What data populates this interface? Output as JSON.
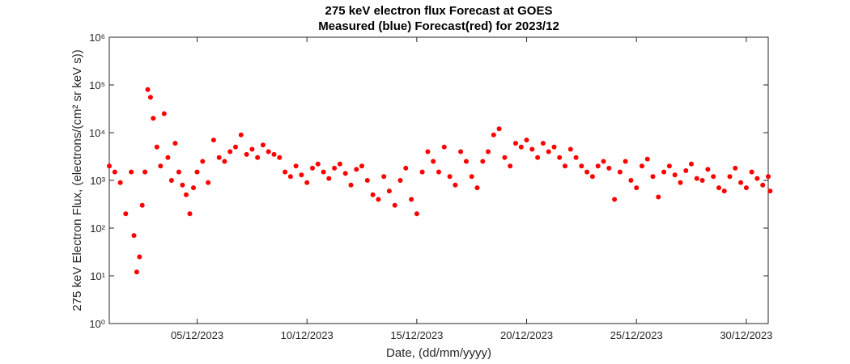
{
  "chart_data": {
    "type": "scatter",
    "title": "275 keV electron flux Forecast at GOES",
    "subtitle": "Measured (blue) Forecast(red) for 2023/12",
    "xlabel": "Date, (dd/mm/yyyy)",
    "ylabel": "275 keV Electron Flux, (electrons/(cm² sr keV s))",
    "y_scale": "log",
    "ylim": [
      1,
      1000000
    ],
    "xlim": [
      "2023-12-01",
      "2023-12-30T24:00"
    ],
    "y_tick_labels": [
      "10⁰",
      "10¹",
      "10²",
      "10³",
      "10⁴",
      "10⁵",
      "10⁶"
    ],
    "x_ticks": [
      {
        "date": "2023-12-05",
        "label": "05/12/2023"
      },
      {
        "date": "2023-12-10",
        "label": "10/12/2023"
      },
      {
        "date": "2023-12-15",
        "label": "15/12/2023"
      },
      {
        "date": "2023-12-20",
        "label": "20/12/2023"
      },
      {
        "date": "2023-12-25",
        "label": "25/12/2023"
      },
      {
        "date": "2023-12-30",
        "label": "30/12/2023"
      }
    ],
    "grid": false,
    "legend": "none",
    "series": [
      {
        "color": "#ff0000",
        "points": [
          [
            "2023-12-01T00:00",
            2000
          ],
          [
            "2023-12-01T06:00",
            1500
          ],
          [
            "2023-12-01T12:00",
            900
          ],
          [
            "2023-12-01T18:00",
            200
          ],
          [
            "2023-12-02T00:00",
            1500
          ],
          [
            "2023-12-02T03:00",
            70
          ],
          [
            "2023-12-02T06:00",
            12
          ],
          [
            "2023-12-02T09:00",
            25
          ],
          [
            "2023-12-02T12:00",
            300
          ],
          [
            "2023-12-02T15:00",
            1500
          ],
          [
            "2023-12-02T18:00",
            80000
          ],
          [
            "2023-12-02T21:00",
            55000
          ],
          [
            "2023-12-03T00:00",
            20000
          ],
          [
            "2023-12-03T04:00",
            5000
          ],
          [
            "2023-12-03T08:00",
            2000
          ],
          [
            "2023-12-03T12:00",
            25000
          ],
          [
            "2023-12-03T16:00",
            3000
          ],
          [
            "2023-12-03T20:00",
            1000
          ],
          [
            "2023-12-04T00:00",
            6000
          ],
          [
            "2023-12-04T04:00",
            1500
          ],
          [
            "2023-12-04T08:00",
            800
          ],
          [
            "2023-12-04T12:00",
            500
          ],
          [
            "2023-12-04T16:00",
            200
          ],
          [
            "2023-12-04T20:00",
            700
          ],
          [
            "2023-12-05T00:00",
            1500
          ],
          [
            "2023-12-05T06:00",
            2500
          ],
          [
            "2023-12-05T12:00",
            900
          ],
          [
            "2023-12-05T18:00",
            7000
          ],
          [
            "2023-12-06T00:00",
            3000
          ],
          [
            "2023-12-06T06:00",
            2500
          ],
          [
            "2023-12-06T12:00",
            4000
          ],
          [
            "2023-12-06T18:00",
            5000
          ],
          [
            "2023-12-07T00:00",
            9000
          ],
          [
            "2023-12-07T06:00",
            3500
          ],
          [
            "2023-12-07T12:00",
            4500
          ],
          [
            "2023-12-07T18:00",
            3000
          ],
          [
            "2023-12-08T00:00",
            5500
          ],
          [
            "2023-12-08T06:00",
            4000
          ],
          [
            "2023-12-08T12:00",
            3500
          ],
          [
            "2023-12-08T18:00",
            3000
          ],
          [
            "2023-12-09T00:00",
            1500
          ],
          [
            "2023-12-09T06:00",
            1200
          ],
          [
            "2023-12-09T12:00",
            2000
          ],
          [
            "2023-12-09T18:00",
            1300
          ],
          [
            "2023-12-10T00:00",
            900
          ],
          [
            "2023-12-10T06:00",
            1800
          ],
          [
            "2023-12-10T12:00",
            2200
          ],
          [
            "2023-12-10T18:00",
            1500
          ],
          [
            "2023-12-11T00:00",
            1100
          ],
          [
            "2023-12-11T06:00",
            1800
          ],
          [
            "2023-12-11T12:00",
            2200
          ],
          [
            "2023-12-11T18:00",
            1400
          ],
          [
            "2023-12-12T00:00",
            800
          ],
          [
            "2023-12-12T06:00",
            1700
          ],
          [
            "2023-12-12T12:00",
            2000
          ],
          [
            "2023-12-12T18:00",
            1000
          ],
          [
            "2023-12-13T00:00",
            500
          ],
          [
            "2023-12-13T06:00",
            400
          ],
          [
            "2023-12-13T12:00",
            1200
          ],
          [
            "2023-12-13T18:00",
            600
          ],
          [
            "2023-12-14T00:00",
            300
          ],
          [
            "2023-12-14T06:00",
            1000
          ],
          [
            "2023-12-14T12:00",
            1800
          ],
          [
            "2023-12-14T18:00",
            400
          ],
          [
            "2023-12-15T00:00",
            200
          ],
          [
            "2023-12-15T06:00",
            1500
          ],
          [
            "2023-12-15T12:00",
            4000
          ],
          [
            "2023-12-15T18:00",
            2500
          ],
          [
            "2023-12-16T00:00",
            1500
          ],
          [
            "2023-12-16T06:00",
            5000
          ],
          [
            "2023-12-16T12:00",
            1200
          ],
          [
            "2023-12-16T18:00",
            800
          ],
          [
            "2023-12-17T00:00",
            4000
          ],
          [
            "2023-12-17T06:00",
            2500
          ],
          [
            "2023-12-17T12:00",
            1200
          ],
          [
            "2023-12-17T18:00",
            700
          ],
          [
            "2023-12-18T00:00",
            2500
          ],
          [
            "2023-12-18T06:00",
            4000
          ],
          [
            "2023-12-18T12:00",
            9000
          ],
          [
            "2023-12-18T18:00",
            12000
          ],
          [
            "2023-12-19T00:00",
            3000
          ],
          [
            "2023-12-19T06:00",
            2000
          ],
          [
            "2023-12-19T12:00",
            6000
          ],
          [
            "2023-12-19T18:00",
            5000
          ],
          [
            "2023-12-20T00:00",
            7000
          ],
          [
            "2023-12-20T06:00",
            4500
          ],
          [
            "2023-12-20T12:00",
            3000
          ],
          [
            "2023-12-20T18:00",
            6000
          ],
          [
            "2023-12-21T00:00",
            4000
          ],
          [
            "2023-12-21T06:00",
            5000
          ],
          [
            "2023-12-21T12:00",
            3000
          ],
          [
            "2023-12-21T18:00",
            2000
          ],
          [
            "2023-12-22T00:00",
            4500
          ],
          [
            "2023-12-22T06:00",
            3000
          ],
          [
            "2023-12-22T12:00",
            2000
          ],
          [
            "2023-12-22T18:00",
            1500
          ],
          [
            "2023-12-23T00:00",
            1200
          ],
          [
            "2023-12-23T06:00",
            2000
          ],
          [
            "2023-12-23T12:00",
            2500
          ],
          [
            "2023-12-23T18:00",
            1800
          ],
          [
            "2023-12-24T00:00",
            400
          ],
          [
            "2023-12-24T06:00",
            1500
          ],
          [
            "2023-12-24T12:00",
            2500
          ],
          [
            "2023-12-24T18:00",
            1000
          ],
          [
            "2023-12-25T00:00",
            700
          ],
          [
            "2023-12-25T06:00",
            2000
          ],
          [
            "2023-12-25T12:00",
            2800
          ],
          [
            "2023-12-25T18:00",
            1200
          ],
          [
            "2023-12-26T00:00",
            450
          ],
          [
            "2023-12-26T06:00",
            1500
          ],
          [
            "2023-12-26T12:00",
            2000
          ],
          [
            "2023-12-26T18:00",
            1300
          ],
          [
            "2023-12-27T00:00",
            900
          ],
          [
            "2023-12-27T06:00",
            1600
          ],
          [
            "2023-12-27T12:00",
            2200
          ],
          [
            "2023-12-27T18:00",
            1100
          ],
          [
            "2023-12-28T00:00",
            1000
          ],
          [
            "2023-12-28T06:00",
            1700
          ],
          [
            "2023-12-28T12:00",
            1200
          ],
          [
            "2023-12-28T18:00",
            700
          ],
          [
            "2023-12-29T00:00",
            600
          ],
          [
            "2023-12-29T06:00",
            1200
          ],
          [
            "2023-12-29T12:00",
            1800
          ],
          [
            "2023-12-29T18:00",
            900
          ],
          [
            "2023-12-30T00:00",
            700
          ],
          [
            "2023-12-30T06:00",
            1500
          ],
          [
            "2023-12-30T12:00",
            1100
          ],
          [
            "2023-12-30T18:00",
            800
          ],
          [
            "2023-12-31T00:00",
            1200
          ],
          [
            "2023-12-31T02:00",
            600
          ]
        ]
      }
    ]
  }
}
